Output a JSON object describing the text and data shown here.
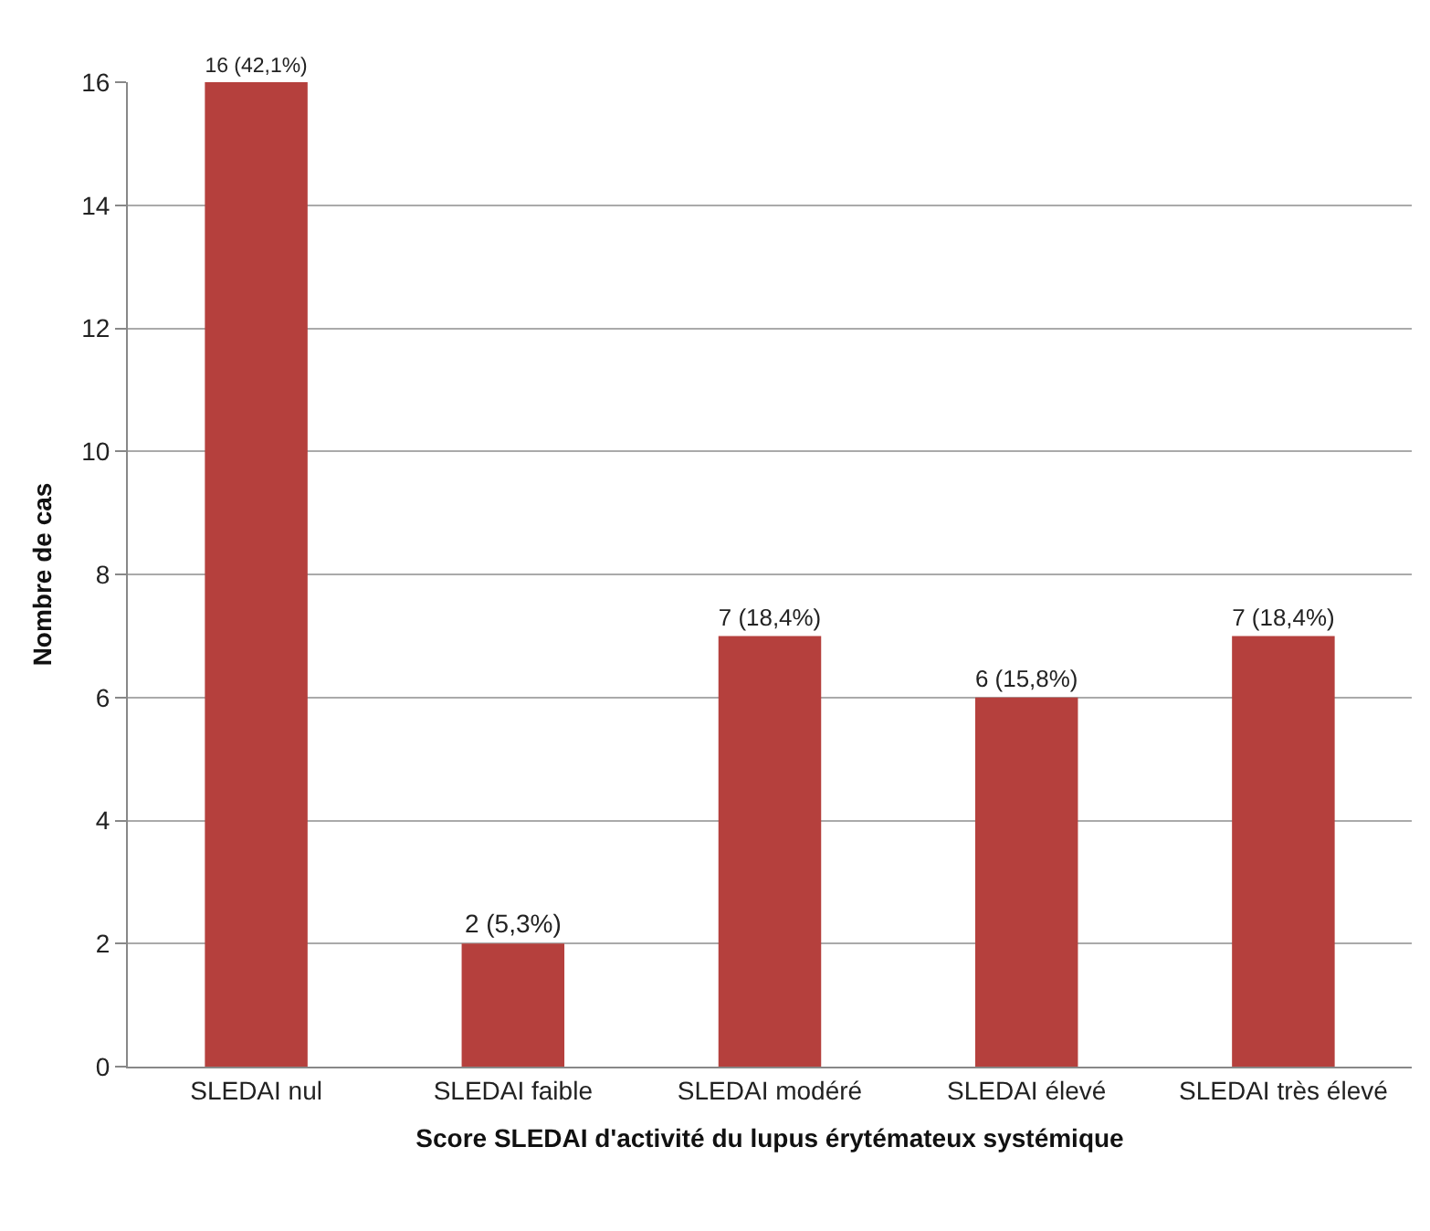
{
  "chart_data": {
    "type": "bar",
    "xlabel": "Score SLEDAI d'activité du lupus érytémateux systémique",
    "ylabel": "Nombre de cas",
    "categories": [
      "SLEDAI nul",
      "SLEDAI faible",
      "SLEDAI modéré",
      "SLEDAI élevé",
      "SLEDAI très élevé"
    ],
    "values": [
      16,
      2,
      7,
      6,
      7
    ],
    "value_labels": [
      "16 (42,1%)",
      "2 (5,3%)",
      "7 (18,4%)",
      "6 (15,8%)",
      "7 (18,4%)"
    ],
    "color": "#b5403d",
    "ylim": [
      0,
      16
    ],
    "yticks": [
      0,
      2,
      4,
      6,
      8,
      10,
      12,
      14,
      16
    ],
    "grid": "y",
    "legend": false
  }
}
